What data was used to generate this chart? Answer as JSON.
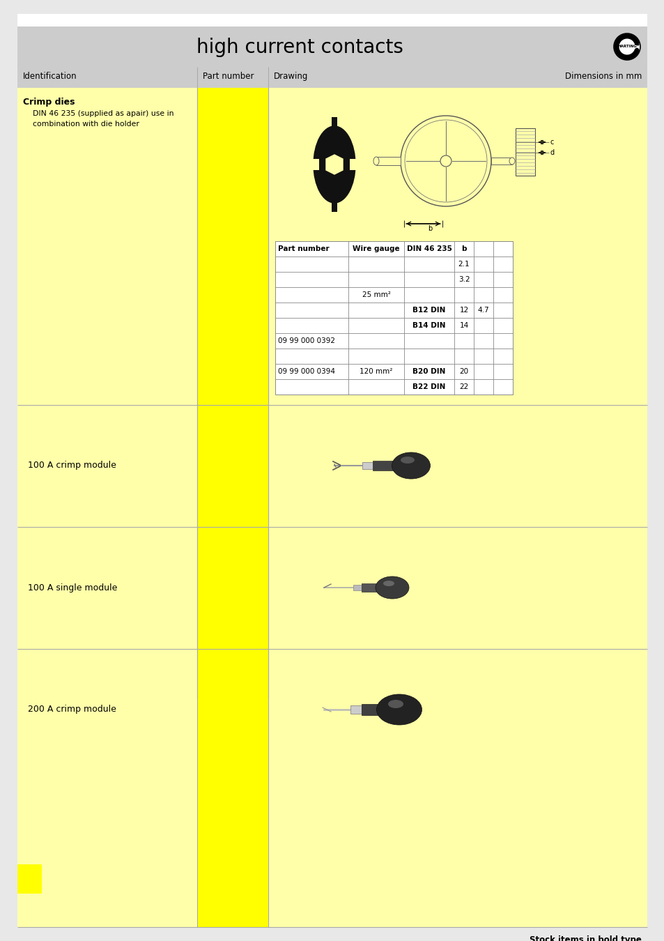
{
  "title": "high current contacts",
  "title_fontsize": 20,
  "header_bg": "#cccccc",
  "light_yellow": "#fffff0",
  "bright_yellow": "#ffff00",
  "pale_yellow": "#ffffaa",
  "white": "#ffffff",
  "page_bg": "#e8e8e8",
  "row1_id_title": "Crimp dies",
  "row1_id_subtitle1": "DIN 46 235 (supplied as apair) use in",
  "row1_id_subtitle2": "combination with die holder",
  "table_rows": [
    [
      "Part number",
      "Wire gauge",
      "DIN 46 235",
      "b",
      "",
      ""
    ],
    [
      "",
      "",
      "",
      "2.1",
      "",
      ""
    ],
    [
      "",
      "",
      "",
      "3.2",
      "",
      ""
    ],
    [
      "",
      "25 mm²",
      "",
      "",
      "",
      ""
    ],
    [
      "",
      "",
      "B12 DIN",
      "12",
      "4.7",
      ""
    ],
    [
      "",
      "",
      "B14 DIN",
      "14",
      "",
      ""
    ],
    [
      "09 99 000 0392",
      "",
      "",
      "",
      "",
      ""
    ],
    [
      "",
      "",
      "",
      "",
      "",
      ""
    ],
    [
      "09 99 000 0394",
      "120 mm²",
      "B20 DIN",
      "20",
      "",
      ""
    ],
    [
      "",
      "",
      "B22 DIN",
      "22",
      "",
      ""
    ]
  ],
  "row2_label": "100 A crimp module",
  "row3_label": "100 A single module",
  "row4_label": "200 A crimp module",
  "bottom_note": "Stock items in bold type"
}
